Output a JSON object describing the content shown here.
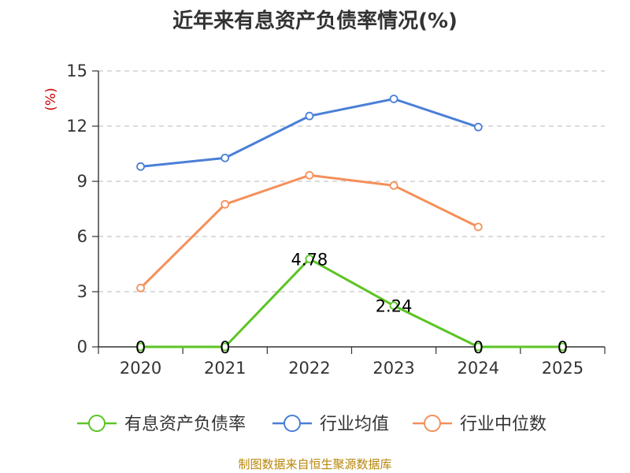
{
  "chart_data": {
    "type": "line",
    "title": "近年来有息资产负债率情况(%)",
    "ylabel": "(%)",
    "categories": [
      "2020",
      "2021",
      "2022",
      "2023",
      "2024",
      "2025"
    ],
    "yticks": [
      0,
      3,
      6,
      9,
      12,
      15
    ],
    "ylim": [
      0,
      15
    ],
    "grid": true,
    "legend_position": "bottom",
    "series": [
      {
        "name": "有息资产负债率",
        "color": "#5cc424",
        "values": [
          0,
          0,
          4.78,
          2.24,
          0,
          0
        ],
        "labels": [
          "0",
          "0",
          "4.78",
          "2.24",
          "0",
          "0"
        ]
      },
      {
        "name": "行业均值",
        "color": "#4a7fd6",
        "values": [
          9.8,
          10.27,
          12.55,
          13.48,
          11.95,
          null
        ]
      },
      {
        "name": "行业中位数",
        "color": "#f4905a",
        "values": [
          3.2,
          7.75,
          9.33,
          8.77,
          6.52,
          null
        ]
      }
    ],
    "source": "制图数据来自恒生聚源数据库"
  }
}
